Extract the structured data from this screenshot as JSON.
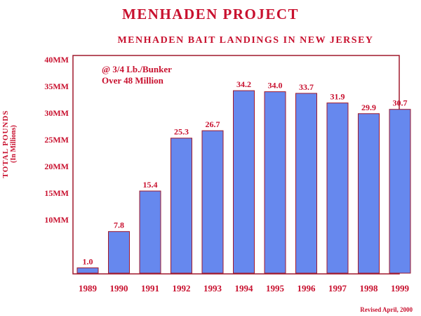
{
  "title": "MENHADEN PROJECT",
  "subtitle": "MENHADEN BAIT LANDINGS IN NEW JERSEY",
  "ylabel_line1": "TOTAL POUNDS",
  "ylabel_line2": "(In Millions)",
  "annotation_line1": "@ 3/4 Lb./Bunker",
  "annotation_line2": "Over 48 Million",
  "footnote": "Revised April, 2000",
  "colors": {
    "text": "#c8102e",
    "bar": "#6688ee",
    "frame": "#a0182c"
  },
  "chart_data": {
    "type": "bar",
    "title": "MENHADEN BAIT LANDINGS IN NEW JERSEY",
    "xlabel": "",
    "ylabel": "TOTAL POUNDS (In Millions)",
    "categories": [
      "1989",
      "1990",
      "1991",
      "1992",
      "1993",
      "1994",
      "1995",
      "1996",
      "1997",
      "1998",
      "1999"
    ],
    "values": [
      1.0,
      7.8,
      15.4,
      25.3,
      26.7,
      34.2,
      34.0,
      33.7,
      31.9,
      29.9,
      30.7
    ],
    "data_labels": [
      "1.0",
      "7.8",
      "15.4",
      "25.3",
      "26.7",
      "34.2",
      "34.0",
      "33.7",
      "31.9",
      "29.9",
      "30.7"
    ],
    "ylim": [
      0,
      40
    ],
    "yticks": [
      {
        "value": 10,
        "label": "10MM"
      },
      {
        "value": 15,
        "label": "15MM"
      },
      {
        "value": 20,
        "label": "20MM"
      },
      {
        "value": 25,
        "label": "25MM"
      },
      {
        "value": 30,
        "label": "30MM"
      },
      {
        "value": 35,
        "label": "35MM"
      },
      {
        "value": 40,
        "label": "40MM"
      }
    ],
    "grid": false
  }
}
